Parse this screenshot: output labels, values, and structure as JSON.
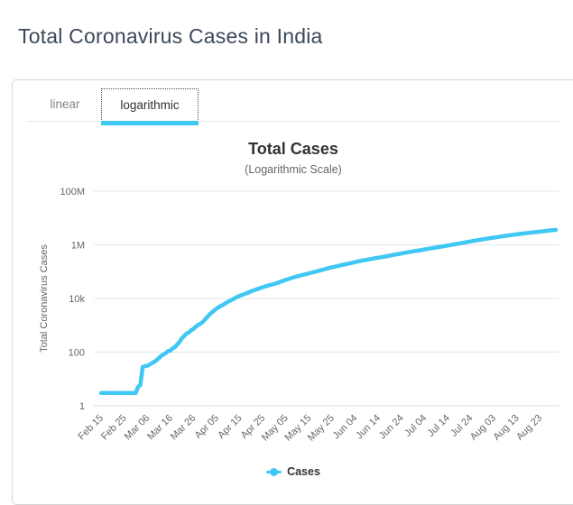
{
  "page": {
    "title": "Total Coronavirus Cases in India"
  },
  "tabs": {
    "items": [
      {
        "label": "linear",
        "active": false
      },
      {
        "label": "logarithmic",
        "active": true
      }
    ]
  },
  "colors": {
    "series": "#41c7f4",
    "tab_underline": "#3ec9f0",
    "grid": "#e6e6e6",
    "axis_line": "#d4dce8",
    "tick_label": "#666666",
    "chart_title": "#333333",
    "page_title": "#3c4858"
  },
  "chart_data": {
    "type": "line",
    "title": "Total Cases",
    "subtitle": "(Logarithmic Scale)",
    "xlabel": "",
    "ylabel": "Total Coronavirus Cases",
    "yscale": "log",
    "ylim": [
      1,
      100000000
    ],
    "grid": true,
    "legend_position": "bottom",
    "yticks": {
      "values": [
        1,
        100,
        10000,
        1000000,
        100000000
      ],
      "labels": [
        "1",
        "100",
        "10k",
        "1M",
        "100M"
      ]
    },
    "xticks": {
      "day_offsets": [
        0,
        10,
        20,
        30,
        40,
        50,
        60,
        70,
        80,
        90,
        100,
        110,
        120,
        130,
        140,
        150,
        160,
        170,
        180,
        190
      ],
      "labels": [
        "Feb 15",
        "Feb 25",
        "Mar 06",
        "Mar 16",
        "Mar 26",
        "Apr 05",
        "Apr 15",
        "Apr 25",
        "May 05",
        "May 15",
        "May 25",
        "Jun 04",
        "Jun 14",
        "Jun 24",
        "Jul 04",
        "Jul 14",
        "Jul 24",
        "Aug 03",
        "Aug 13",
        "Aug 23"
      ]
    },
    "series": [
      {
        "name": "Cases",
        "color": "#41c7f4",
        "dates": [
          "Feb 15",
          "Feb 17",
          "Feb 19",
          "Feb 21",
          "Feb 23",
          "Feb 25",
          "Feb 27",
          "Feb 29",
          "Mar 01",
          "Mar 02",
          "Mar 03",
          "Mar 04",
          "Mar 05",
          "Mar 06",
          "Mar 07",
          "Mar 08",
          "Mar 09",
          "Mar 10",
          "Mar 11",
          "Mar 12",
          "Mar 13",
          "Mar 14",
          "Mar 15",
          "Mar 16",
          "Mar 17",
          "Mar 18",
          "Mar 19",
          "Mar 20",
          "Mar 21",
          "Mar 22",
          "Mar 23",
          "Mar 24",
          "Mar 25",
          "Mar 26",
          "Mar 27",
          "Mar 28",
          "Mar 29",
          "Mar 30",
          "Mar 31",
          "Apr 02",
          "Apr 04",
          "Apr 06",
          "Apr 08",
          "Apr 10",
          "Apr 12",
          "Apr 14",
          "Apr 16",
          "Apr 18",
          "Apr 20",
          "Apr 22",
          "Apr 24",
          "Apr 26",
          "Apr 28",
          "Apr 30",
          "May 02",
          "May 04",
          "May 06",
          "May 08",
          "May 10",
          "May 12",
          "May 14",
          "May 16",
          "May 18",
          "May 20",
          "May 22",
          "May 24",
          "May 26",
          "May 28",
          "May 30",
          "Jun 01",
          "Jun 03",
          "Jun 05",
          "Jun 07",
          "Jun 09",
          "Jun 11",
          "Jun 13",
          "Jun 15",
          "Jun 17",
          "Jun 19",
          "Jun 21",
          "Jun 23",
          "Jun 25",
          "Jun 27",
          "Jun 29",
          "Jul 01",
          "Jul 03",
          "Jul 05",
          "Jul 07",
          "Jul 09",
          "Jul 11",
          "Jul 13",
          "Jul 15",
          "Jul 17",
          "Jul 19",
          "Jul 21",
          "Jul 23",
          "Jul 25",
          "Jul 27",
          "Jul 29",
          "Jul 31",
          "Aug 02",
          "Aug 04",
          "Aug 06",
          "Aug 08",
          "Aug 10",
          "Aug 12",
          "Aug 14",
          "Aug 16",
          "Aug 18",
          "Aug 20",
          "Aug 22",
          "Aug 24",
          "Aug 26",
          "Aug 28",
          "Aug 30"
        ],
        "days": [
          0,
          2,
          4,
          6,
          8,
          10,
          12,
          14,
          15,
          16,
          17,
          18,
          19,
          20,
          21,
          22,
          23,
          24,
          25,
          26,
          27,
          28,
          29,
          30,
          31,
          32,
          33,
          34,
          35,
          36,
          37,
          38,
          39,
          40,
          41,
          42,
          43,
          44,
          45,
          47,
          49,
          51,
          53,
          55,
          57,
          59,
          61,
          63,
          65,
          67,
          69,
          71,
          73,
          75,
          77,
          79,
          81,
          83,
          85,
          87,
          89,
          91,
          93,
          95,
          97,
          99,
          101,
          103,
          105,
          107,
          109,
          111,
          113,
          115,
          117,
          119,
          121,
          123,
          125,
          127,
          129,
          131,
          133,
          135,
          137,
          139,
          141,
          143,
          145,
          147,
          149,
          151,
          153,
          155,
          157,
          159,
          161,
          163,
          165,
          167,
          169,
          171,
          173,
          175,
          177,
          179,
          181,
          183,
          185,
          187,
          189,
          191,
          193,
          195,
          197
        ],
        "values": [
          3,
          3,
          3,
          3,
          3,
          3,
          3,
          3,
          3,
          5,
          6,
          28,
          30,
          31,
          34,
          39,
          43,
          50,
          60,
          73,
          81,
          91,
          110,
          114,
          137,
          156,
          194,
          244,
          330,
          396,
          499,
          536,
          657,
          727,
          887,
          1024,
          1139,
          1326,
          1637,
          2543,
          3588,
          4778,
          5916,
          7600,
          9205,
          11487,
          13387,
          15722,
          18601,
          21370,
          24506,
          27890,
          31324,
          34863,
          39699,
          46437,
          52987,
          59695,
          67161,
          74292,
          81997,
          90648,
          100340,
          112028,
          124794,
          138536,
          150793,
          165386,
          181827,
          198370,
          216824,
          236184,
          257486,
          276146,
          297535,
          320922,
          343026,
          366946,
          395048,
          425282,
          456183,
          490401,
          528859,
          566840,
          604641,
          648315,
          697413,
          742417,
          793802,
          849553,
          906752,
          968876,
          1038716,
          1118043,
          1193078,
          1288108,
          1385522,
          1480073,
          1583792,
          1695988,
          1803695,
          1908254,
          2027074,
          2153010,
          2268675,
          2396637,
          2527824,
          2647663,
          2767253,
          2905823,
          3044940,
          3167323,
          3310234,
          3463972,
          3621245
        ]
      }
    ]
  }
}
